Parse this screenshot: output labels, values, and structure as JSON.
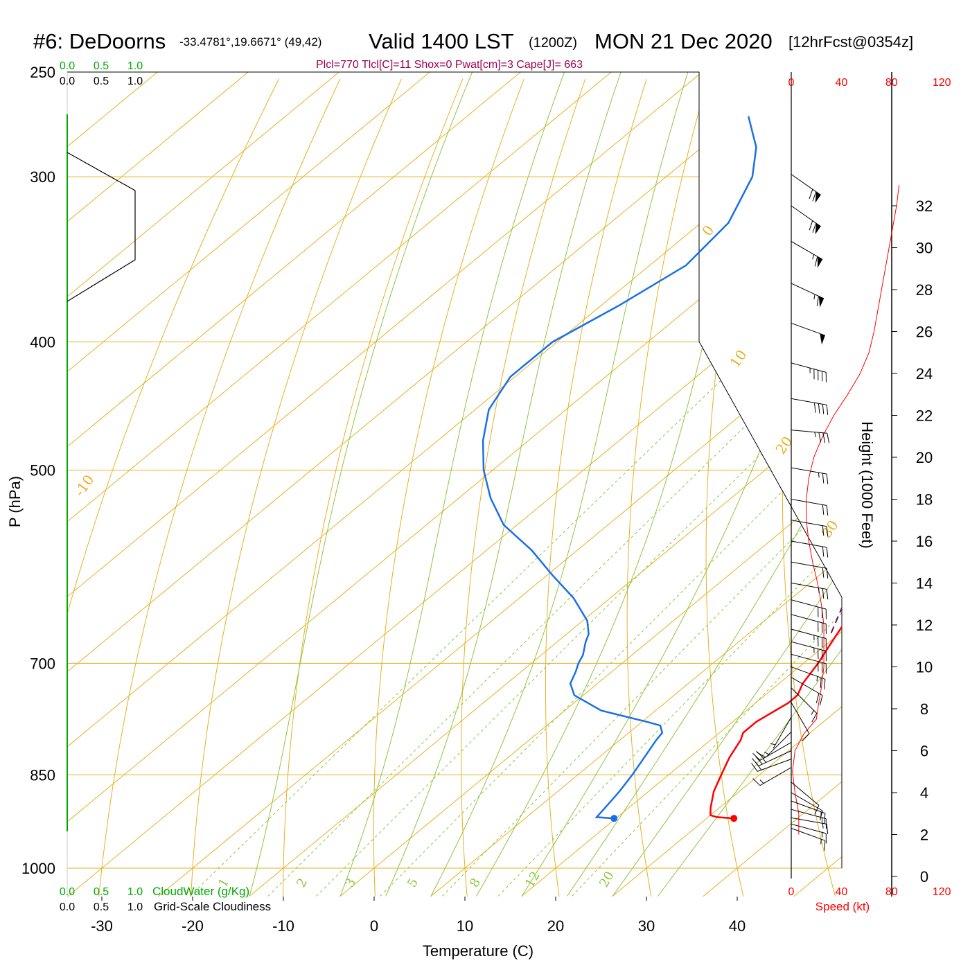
{
  "header": {
    "station": "#6: DeDoorns",
    "coords": "-33.4781°,19.6671° (49,42)",
    "valid_label": "Valid 1400 LST",
    "utc_label": "(1200Z)",
    "date_label": "MON 21 Dec 2020",
    "forecast_label": "[12hrFcst@0354z]",
    "indices": "Plcl=770 Tlcl[C]=11 Shox=0 Pwat[cm]=3 Cape[J]= 663"
  },
  "cloud_scale": {
    "ticks": [
      "0.0",
      "0.5",
      "1.0"
    ],
    "cloudwater_label": "CloudWater (g/Kg)",
    "cloudiness_label": "Grid-Scale Cloudiness"
  },
  "colors": {
    "temperature": "#ff0000",
    "dewpoint": "#1a6fe8",
    "parcel": "#6b0f6b",
    "isotherm_adiabat": "#e8b020",
    "moist_adiabat": "#8cc63f",
    "mixing_ratio": "#8cc63f",
    "cloud": "#00aa00",
    "wind": "#000000",
    "speed": "#ff0000",
    "indices": "#a0004a"
  },
  "chart_data": {
    "type": "skew-t",
    "xlabel": "Temperature (C)",
    "ylabel": "P (hPa)",
    "y2label": "Height (1000 Feet)",
    "speed_label": "Speed (kt)",
    "temperature_ticks": [
      -30,
      -20,
      -10,
      0,
      10,
      20,
      30,
      40
    ],
    "pressure_ticks": [
      250,
      300,
      400,
      500,
      700,
      850,
      1000
    ],
    "height_ticks": [
      0,
      2,
      4,
      6,
      8,
      10,
      12,
      14,
      16,
      18,
      20,
      22,
      24,
      26,
      28,
      30,
      32
    ],
    "speed_ticks": [
      0,
      40,
      80,
      120
    ],
    "theta_labels": [
      -10,
      0,
      10,
      20,
      30
    ],
    "mixing_ratio_labels": [
      "1",
      "2",
      "3",
      "5",
      "8",
      "12",
      "20"
    ],
    "temperature_profile": [
      {
        "p": 917,
        "t": 33.0
      },
      {
        "p": 915,
        "t": 31.0
      },
      {
        "p": 912,
        "t": 30.0
      },
      {
        "p": 900,
        "t": 29.0
      },
      {
        "p": 875,
        "t": 27.2
      },
      {
        "p": 850,
        "t": 25.8
      },
      {
        "p": 825,
        "t": 24.4
      },
      {
        "p": 800,
        "t": 23.3
      },
      {
        "p": 790,
        "t": 22.6
      },
      {
        "p": 775,
        "t": 22.6
      },
      {
        "p": 760,
        "t": 23.2
      },
      {
        "p": 750,
        "t": 23.6
      },
      {
        "p": 740,
        "t": 23.6
      },
      {
        "p": 725,
        "t": 22.6
      },
      {
        "p": 700,
        "t": 21.6
      },
      {
        "p": 675,
        "t": 20.3
      },
      {
        "p": 650,
        "t": 19.0
      },
      {
        "p": 625,
        "t": 17.5
      },
      {
        "p": 600,
        "t": 15.8
      },
      {
        "p": 575,
        "t": 14.0
      },
      {
        "p": 550,
        "t": 12.0
      },
      {
        "p": 525,
        "t": 9.5
      },
      {
        "p": 500,
        "t": 7.0
      },
      {
        "p": 475,
        "t": 4.3
      },
      {
        "p": 450,
        "t": 1.5
      },
      {
        "p": 425,
        "t": -1.6
      },
      {
        "p": 400,
        "t": -4.8
      },
      {
        "p": 375,
        "t": -8.5
      },
      {
        "p": 350,
        "t": -12.5
      },
      {
        "p": 325,
        "t": -17.0
      },
      {
        "p": 300,
        "t": -22.5
      },
      {
        "p": 285,
        "t": -26.0
      },
      {
        "p": 270,
        "t": -29.7
      }
    ],
    "dewpoint_profile": [
      {
        "p": 917,
        "t": 19.8
      },
      {
        "p": 915,
        "t": 17.7
      },
      {
        "p": 905,
        "t": 17.5
      },
      {
        "p": 875,
        "t": 16.8
      },
      {
        "p": 850,
        "t": 16.0
      },
      {
        "p": 800,
        "t": 14.0
      },
      {
        "p": 790,
        "t": 13.7
      },
      {
        "p": 780,
        "t": 12.5
      },
      {
        "p": 775,
        "t": 10.5
      },
      {
        "p": 760,
        "t": 4.0
      },
      {
        "p": 740,
        "t": -1.0
      },
      {
        "p": 725,
        "t": -3.0
      },
      {
        "p": 710,
        "t": -4.0
      },
      {
        "p": 700,
        "t": -4.8
      },
      {
        "p": 690,
        "t": -5.4
      },
      {
        "p": 675,
        "t": -6.8
      },
      {
        "p": 665,
        "t": -7.6
      },
      {
        "p": 650,
        "t": -9.5
      },
      {
        "p": 625,
        "t": -14.0
      },
      {
        "p": 600,
        "t": -19.5
      },
      {
        "p": 575,
        "t": -25.0
      },
      {
        "p": 550,
        "t": -31.5
      },
      {
        "p": 525,
        "t": -36.5
      },
      {
        "p": 500,
        "t": -41.0
      },
      {
        "p": 475,
        "t": -45.0
      },
      {
        "p": 450,
        "t": -48.5
      },
      {
        "p": 425,
        "t": -50.5
      },
      {
        "p": 400,
        "t": -50.5
      },
      {
        "p": 375,
        "t": -48.0
      },
      {
        "p": 350,
        "t": -46.0
      },
      {
        "p": 325,
        "t": -47.0
      },
      {
        "p": 300,
        "t": -50.5
      },
      {
        "p": 285,
        "t": -54.0
      },
      {
        "p": 270,
        "t": -59.0
      }
    ],
    "parcel_profile": [
      {
        "p": 664,
        "t": 19.0
      },
      {
        "p": 625,
        "t": 16.0
      },
      {
        "p": 575,
        "t": 12.0
      },
      {
        "p": 525,
        "t": 7.0
      },
      {
        "p": 475,
        "t": 1.5
      },
      {
        "p": 425,
        "t": -4.5
      },
      {
        "p": 375,
        "t": -12.0
      },
      {
        "p": 340,
        "t": -18.5
      },
      {
        "p": 310,
        "t": -25.0
      },
      {
        "p": 290,
        "t": -29.0
      }
    ],
    "wind_barbs": [
      {
        "height_kft": 2.3,
        "speed_kt": 15,
        "dir_deg": 290
      },
      {
        "height_kft": 2.5,
        "speed_kt": 15,
        "dir_deg": 285
      },
      {
        "height_kft": 2.8,
        "speed_kt": 15,
        "dir_deg": 280
      },
      {
        "height_kft": 3.2,
        "speed_kt": 15,
        "dir_deg": 285
      },
      {
        "height_kft": 3.6,
        "speed_kt": 15,
        "dir_deg": 290
      },
      {
        "height_kft": 4.0,
        "speed_kt": 10,
        "dir_deg": 300
      },
      {
        "height_kft": 4.5,
        "speed_kt": 10,
        "dir_deg": 310
      },
      {
        "height_kft": 5.2,
        "speed_kt": 15,
        "dir_deg": 60
      },
      {
        "height_kft": 5.6,
        "speed_kt": 20,
        "dir_deg": 70
      },
      {
        "height_kft": 6.0,
        "speed_kt": 25,
        "dir_deg": 65
      },
      {
        "height_kft": 6.4,
        "speed_kt": 20,
        "dir_deg": 60
      },
      {
        "height_kft": 6.9,
        "speed_kt": 15,
        "dir_deg": 45
      },
      {
        "height_kft": 7.6,
        "speed_kt": 5,
        "dir_deg": 30
      },
      {
        "height_kft": 8.3,
        "speed_kt": 10,
        "dir_deg": 330
      },
      {
        "height_kft": 9.0,
        "speed_kt": 15,
        "dir_deg": 315
      },
      {
        "height_kft": 9.5,
        "speed_kt": 20,
        "dir_deg": 300
      },
      {
        "height_kft": 10.0,
        "speed_kt": 25,
        "dir_deg": 290
      },
      {
        "height_kft": 10.6,
        "speed_kt": 30,
        "dir_deg": 285
      },
      {
        "height_kft": 11.2,
        "speed_kt": 35,
        "dir_deg": 285
      },
      {
        "height_kft": 11.8,
        "speed_kt": 35,
        "dir_deg": 285
      },
      {
        "height_kft": 12.5,
        "speed_kt": 30,
        "dir_deg": 285
      },
      {
        "height_kft": 13.2,
        "speed_kt": 30,
        "dir_deg": 285
      },
      {
        "height_kft": 14.0,
        "speed_kt": 25,
        "dir_deg": 280
      },
      {
        "height_kft": 15.0,
        "speed_kt": 20,
        "dir_deg": 280
      },
      {
        "height_kft": 16.0,
        "speed_kt": 20,
        "dir_deg": 280
      },
      {
        "height_kft": 17.0,
        "speed_kt": 20,
        "dir_deg": 280
      },
      {
        "height_kft": 18.0,
        "speed_kt": 20,
        "dir_deg": 280
      },
      {
        "height_kft": 19.5,
        "speed_kt": 25,
        "dir_deg": 280
      },
      {
        "height_kft": 21.3,
        "speed_kt": 35,
        "dir_deg": 275
      },
      {
        "height_kft": 22.8,
        "speed_kt": 40,
        "dir_deg": 280
      },
      {
        "height_kft": 24.5,
        "speed_kt": 45,
        "dir_deg": 285
      },
      {
        "height_kft": 26.4,
        "speed_kt": 50,
        "dir_deg": 290
      },
      {
        "height_kft": 28.3,
        "speed_kt": 65,
        "dir_deg": 295
      },
      {
        "height_kft": 30.3,
        "speed_kt": 65,
        "dir_deg": 300
      },
      {
        "height_kft": 32.0,
        "speed_kt": 70,
        "dir_deg": 305
      },
      {
        "height_kft": 33.5,
        "speed_kt": 70,
        "dir_deg": 305
      }
    ],
    "speed_profile": [
      {
        "height_kft": 2.0,
        "speed_kt": 6
      },
      {
        "height_kft": 3.0,
        "speed_kt": 6
      },
      {
        "height_kft": 4.0,
        "speed_kt": 3
      },
      {
        "height_kft": 5.0,
        "speed_kt": 1
      },
      {
        "height_kft": 6.0,
        "speed_kt": 3
      },
      {
        "height_kft": 6.8,
        "speed_kt": 10
      },
      {
        "height_kft": 7.5,
        "speed_kt": 20
      },
      {
        "height_kft": 8.3,
        "speed_kt": 22
      },
      {
        "height_kft": 9.0,
        "speed_kt": 24
      },
      {
        "height_kft": 10.0,
        "speed_kt": 26
      },
      {
        "height_kft": 11.0,
        "speed_kt": 26
      },
      {
        "height_kft": 12.0,
        "speed_kt": 26
      },
      {
        "height_kft": 13.0,
        "speed_kt": 24
      },
      {
        "height_kft": 14.0,
        "speed_kt": 21
      },
      {
        "height_kft": 15.0,
        "speed_kt": 17
      },
      {
        "height_kft": 16.0,
        "speed_kt": 14
      },
      {
        "height_kft": 17.0,
        "speed_kt": 12
      },
      {
        "height_kft": 18.0,
        "speed_kt": 12
      },
      {
        "height_kft": 19.0,
        "speed_kt": 14
      },
      {
        "height_kft": 20.0,
        "speed_kt": 18
      },
      {
        "height_kft": 21.0,
        "speed_kt": 25
      },
      {
        "height_kft": 22.0,
        "speed_kt": 34
      },
      {
        "height_kft": 23.0,
        "speed_kt": 45
      },
      {
        "height_kft": 24.0,
        "speed_kt": 55
      },
      {
        "height_kft": 25.0,
        "speed_kt": 62
      },
      {
        "height_kft": 26.0,
        "speed_kt": 66
      },
      {
        "height_kft": 28.0,
        "speed_kt": 72
      },
      {
        "height_kft": 30.0,
        "speed_kt": 78
      },
      {
        "height_kft": 32.0,
        "speed_kt": 84
      },
      {
        "height_kft": 33.0,
        "speed_kt": 86
      }
    ],
    "surface_temperature_marker": 33.0,
    "surface_dewpoint_marker": 19.8,
    "surface_pressure": 917
  }
}
